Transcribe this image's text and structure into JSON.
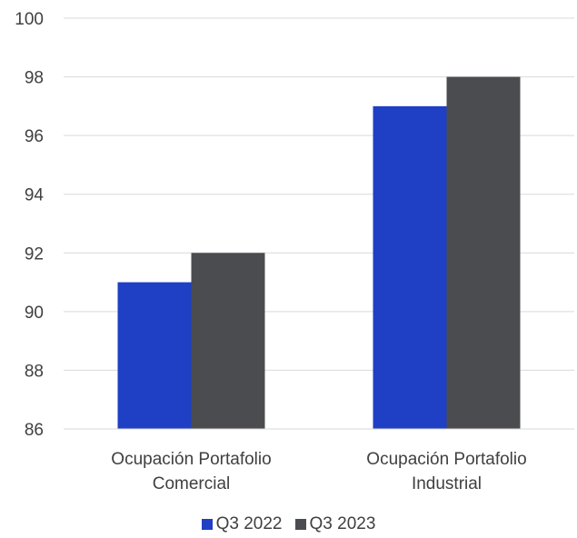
{
  "chart_data": {
    "type": "bar",
    "categories": [
      [
        "Ocupación Portafolio",
        "Comercial"
      ],
      [
        "Ocupación Portafolio",
        "Industrial"
      ]
    ],
    "series": [
      {
        "name": "Q3 2022",
        "values": [
          91,
          97
        ],
        "color": "#1F3FC4"
      },
      {
        "name": "Q3 2023",
        "values": [
          92,
          98
        ],
        "color": "#4A4C4F"
      }
    ],
    "ylim": [
      86,
      100
    ],
    "yticks": [
      "86",
      "88",
      "90",
      "92",
      "94",
      "96",
      "98",
      "100"
    ],
    "grid": true,
    "legend_position": "bottom"
  }
}
